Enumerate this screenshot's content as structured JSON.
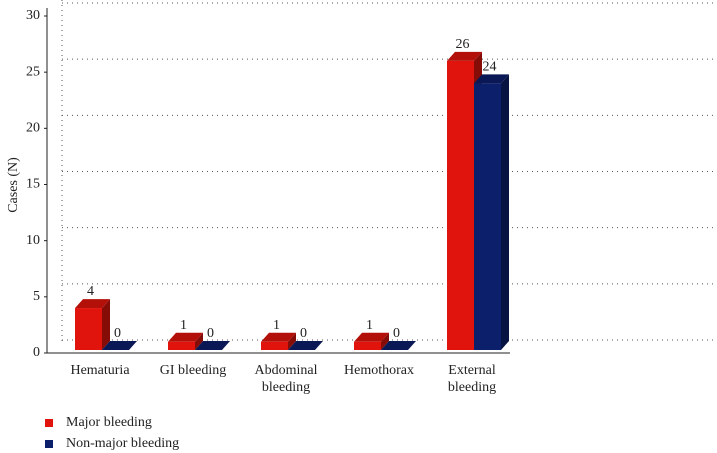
{
  "chart_data": {
    "type": "bar3d",
    "y_label": "Cases (N)",
    "categories": [
      "Hematuria",
      "GI bleeding",
      "Abdominal bleeding",
      "Hemothorax",
      "External bleeding"
    ],
    "series": [
      {
        "name": "Major bleeding",
        "color": "#e0140c",
        "values": [
          4,
          1,
          1,
          1,
          26
        ]
      },
      {
        "name": "Non-major bleeding",
        "color": "#0c1f6b",
        "values": [
          0,
          0,
          0,
          0,
          24
        ]
      }
    ],
    "ylim": [
      0,
      30
    ],
    "yticks": [
      0,
      5,
      10,
      15,
      20,
      25,
      30
    ],
    "grid": true,
    "legend": "bottom-left"
  }
}
